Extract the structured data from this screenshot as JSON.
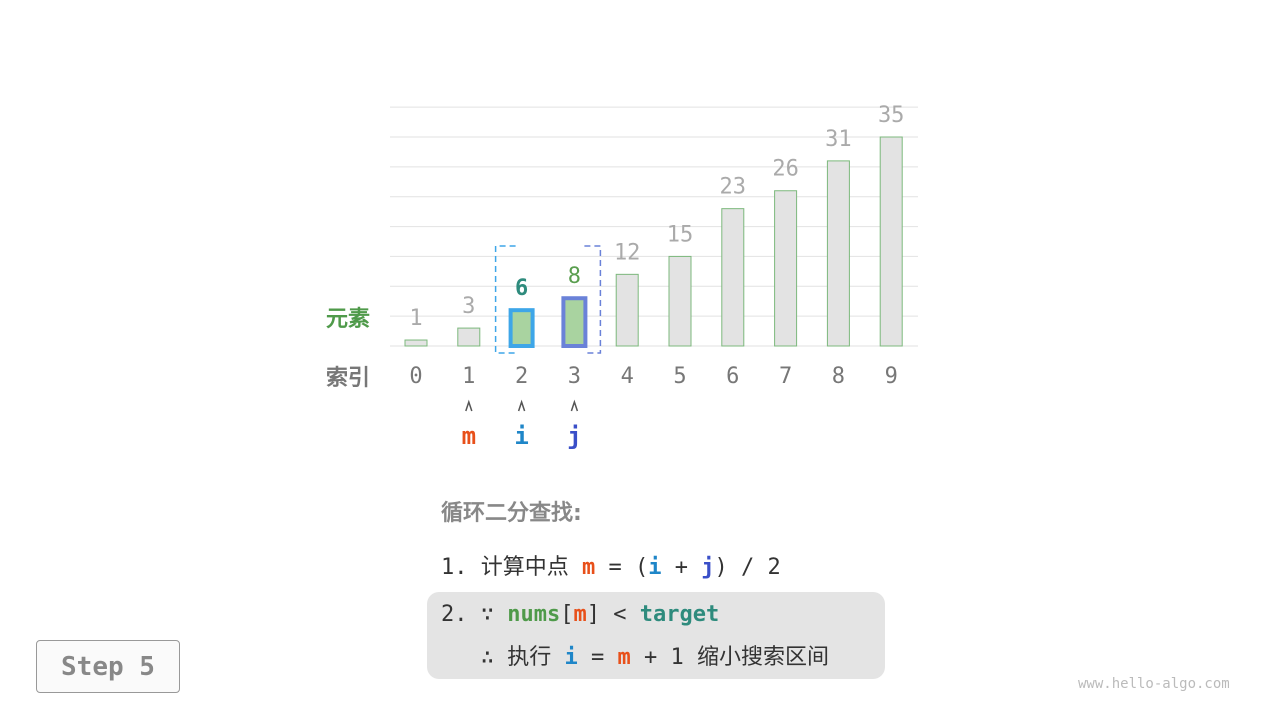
{
  "row_labels": {
    "elements": "元素",
    "indices": "索引"
  },
  "array": [
    1,
    3,
    6,
    8,
    12,
    15,
    23,
    26,
    31,
    35
  ],
  "pointers": {
    "m": 1,
    "i": 2,
    "j": 3
  },
  "active_range": [
    2,
    3
  ],
  "pointer_labels": {
    "m": "m",
    "i": "i",
    "j": "j"
  },
  "colors": {
    "bar_fill": "#e3e3e3",
    "bar_stroke": "#7cb87c",
    "active_fill": "#a9d3a0",
    "i_color": "#1f86c8",
    "j_color": "#3a4fc8",
    "m_color": "#e8501a",
    "range_left": "#3ea6e8",
    "range_right": "#6a82d8",
    "value_i": "#2e8b7d",
    "value_j": "#5a9e4f"
  },
  "text": {
    "title": "循环二分查找:",
    "line1": {
      "num": "1.",
      "desc": "计算中点",
      "m": "m",
      "eq": "=",
      "lp": "(",
      "i": "i",
      "plus": "+",
      "j": "j",
      "rp": ")",
      "div": "/",
      "two": "2"
    },
    "line2": {
      "num": "2.",
      "because": "∵",
      "nums": "nums",
      "lb": "[",
      "m": "m",
      "rb": "]",
      "lt": "<",
      "target": "target"
    },
    "line3": {
      "therefore": "∴",
      "do": "执行",
      "i": "i",
      "eq": "=",
      "m": "m",
      "plus": "+",
      "one": "1",
      "desc": "缩小搜索区间"
    }
  },
  "step_label": "Step 5",
  "watermark": "www.hello-algo.com"
}
